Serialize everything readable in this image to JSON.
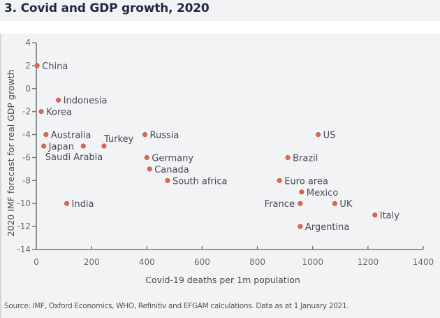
{
  "header": {
    "title": "3. Covid and GDP growth, 2020"
  },
  "footer": {
    "source": "Source: IMF, Oxford Economics, WHO, Refinitiv and EFGAM calculations. Data as at 1 January 2021."
  },
  "colors": {
    "point": "#e0674f",
    "point_stroke": "#b94a35",
    "axis": "#777777",
    "background": "#f2f3f5"
  },
  "chart_data": {
    "type": "scatter",
    "title": "3. Covid and GDP growth, 2020",
    "xlabel": "Covid-19 deaths per 1m population",
    "ylabel": "2020 IMF forecast for real GDP growth",
    "xlim": [
      0,
      1400
    ],
    "ylim": [
      -14,
      4
    ],
    "xticks": [
      0,
      200,
      400,
      600,
      800,
      1000,
      1200,
      1400
    ],
    "yticks": [
      4,
      2,
      0,
      -2,
      -4,
      -6,
      -8,
      -10,
      -12,
      -14
    ],
    "grid": false,
    "points": [
      {
        "label": "China",
        "x": 3,
        "y": 2,
        "label_pos": "right"
      },
      {
        "label": "Indonesia",
        "x": 80,
        "y": -1,
        "label_pos": "right"
      },
      {
        "label": "Korea",
        "x": 18,
        "y": -2,
        "label_pos": "right"
      },
      {
        "label": "Australia",
        "x": 35,
        "y": -4,
        "label_pos": "right"
      },
      {
        "label": "Japan",
        "x": 27,
        "y": -5,
        "label_pos": "right"
      },
      {
        "label": "Saudi Arabia",
        "x": 170,
        "y": -5,
        "label_pos": "below-left"
      },
      {
        "label": "Turkey",
        "x": 245,
        "y": -5,
        "label_pos": "above-right"
      },
      {
        "label": "India",
        "x": 110,
        "y": -10,
        "label_pos": "right"
      },
      {
        "label": "Russia",
        "x": 393,
        "y": -4,
        "label_pos": "right"
      },
      {
        "label": "Germany",
        "x": 400,
        "y": -6,
        "label_pos": "right"
      },
      {
        "label": "Canada",
        "x": 410,
        "y": -7,
        "label_pos": "right"
      },
      {
        "label": "South africa",
        "x": 475,
        "y": -8,
        "label_pos": "right"
      },
      {
        "label": "US",
        "x": 1020,
        "y": -4,
        "label_pos": "right"
      },
      {
        "label": "Brazil",
        "x": 910,
        "y": -6,
        "label_pos": "right"
      },
      {
        "label": "Euro area",
        "x": 880,
        "y": -8,
        "label_pos": "right"
      },
      {
        "label": "Mexico",
        "x": 960,
        "y": -9,
        "label_pos": "right"
      },
      {
        "label": "France",
        "x": 955,
        "y": -10,
        "label_pos": "left"
      },
      {
        "label": "UK",
        "x": 1080,
        "y": -10,
        "label_pos": "right"
      },
      {
        "label": "Italy",
        "x": 1225,
        "y": -11,
        "label_pos": "right"
      },
      {
        "label": "Argentina",
        "x": 955,
        "y": -12,
        "label_pos": "right"
      }
    ]
  }
}
